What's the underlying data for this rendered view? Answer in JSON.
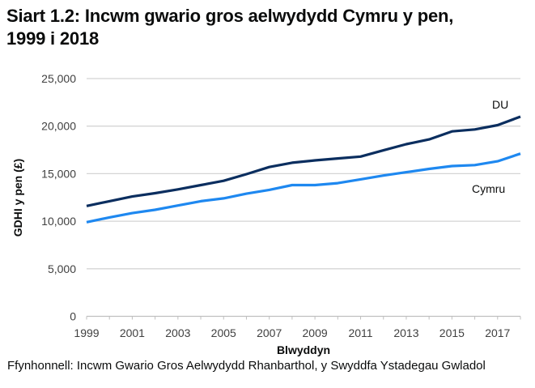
{
  "title_line1": "Siart 1.2: Incwm gwario gros aelwydydd Cymru y pen,",
  "title_line2": "1999 i 2018",
  "source": "Ffynhonnell: Incwm Gwario Gros Aelwydydd Rhanbarthol, y Swyddfa Ystadegau Gwladol",
  "chart_data": {
    "type": "line",
    "title": "Siart 1.2: Incwm gwario gros aelwydydd Cymru y pen, 1999 i 2018",
    "xlabel": "Blwyddyn",
    "ylabel": "GDHI y pen (£)",
    "ylim": [
      0,
      25000
    ],
    "yticks": [
      0,
      5000,
      10000,
      15000,
      20000,
      25000
    ],
    "ytick_labels": [
      "0",
      "5,000",
      "10,000",
      "15,000",
      "20,000",
      "25,000"
    ],
    "xtick_labels": [
      "1999",
      "2001",
      "2003",
      "2005",
      "2007",
      "2009",
      "2011",
      "2013",
      "2015",
      "2017"
    ],
    "grid": true,
    "legend": "inline labels at right end of lines",
    "x": [
      1999,
      2000,
      2001,
      2002,
      2003,
      2004,
      2005,
      2006,
      2007,
      2008,
      2009,
      2010,
      2011,
      2012,
      2013,
      2014,
      2015,
      2016,
      2017,
      2018
    ],
    "series": [
      {
        "name": "DU",
        "color": "#0b2e5f",
        "values": [
          11600,
          12100,
          12600,
          12950,
          13350,
          13800,
          14250,
          14950,
          15700,
          16150,
          16400,
          16600,
          16800,
          17450,
          18100,
          18600,
          19450,
          19650,
          20100,
          21000
        ]
      },
      {
        "name": "Cymru",
        "color": "#1e88f0",
        "values": [
          9900,
          10400,
          10850,
          11200,
          11650,
          12100,
          12400,
          12900,
          13300,
          13800,
          13800,
          14000,
          14400,
          14800,
          15150,
          15500,
          15800,
          15900,
          16300,
          17100
        ]
      }
    ]
  }
}
